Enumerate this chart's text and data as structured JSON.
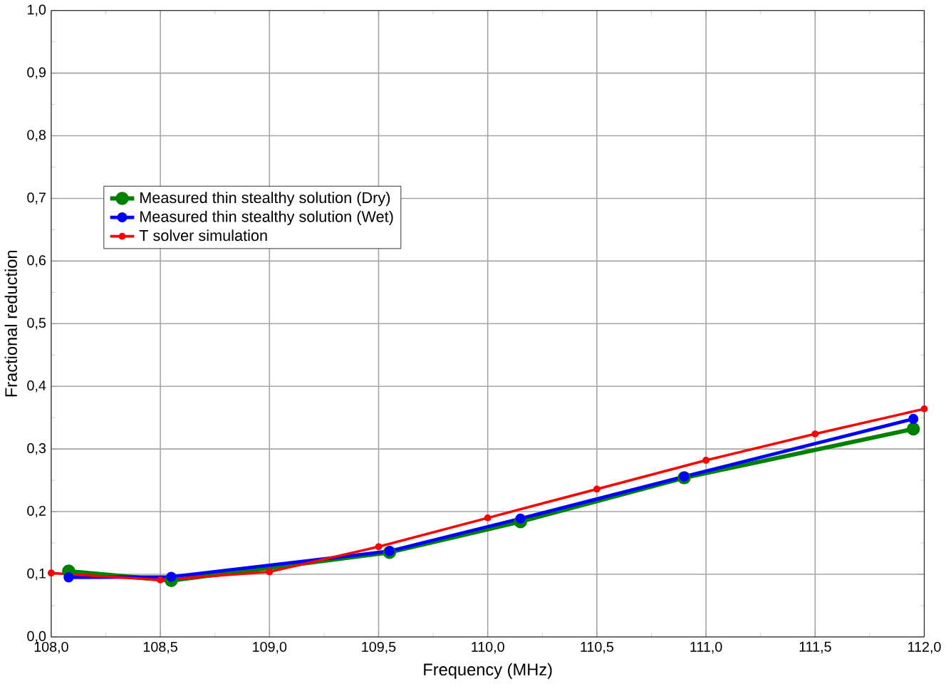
{
  "chart_data": {
    "type": "line",
    "xlabel": "Frequency (MHz)",
    "ylabel": "Fractional reduction",
    "xlim": [
      108.0,
      112.0
    ],
    "ylim": [
      0.0,
      1.0
    ],
    "xticks": [
      {
        "value": 108.0,
        "label": "108,0"
      },
      {
        "value": 108.5,
        "label": "108,5"
      },
      {
        "value": 109.0,
        "label": "109,0"
      },
      {
        "value": 109.5,
        "label": "109,5"
      },
      {
        "value": 110.0,
        "label": "110,0"
      },
      {
        "value": 110.5,
        "label": "110,5"
      },
      {
        "value": 111.0,
        "label": "111,0"
      },
      {
        "value": 111.5,
        "label": "111,5"
      },
      {
        "value": 112.0,
        "label": "112,0"
      }
    ],
    "yticks": [
      {
        "value": 0.0,
        "label": "0,0"
      },
      {
        "value": 0.1,
        "label": "0,1"
      },
      {
        "value": 0.2,
        "label": "0,2"
      },
      {
        "value": 0.3,
        "label": "0,3"
      },
      {
        "value": 0.4,
        "label": "0,4"
      },
      {
        "value": 0.5,
        "label": "0,5"
      },
      {
        "value": 0.6,
        "label": "0,6"
      },
      {
        "value": 0.7,
        "label": "0,7"
      },
      {
        "value": 0.8,
        "label": "0,8"
      },
      {
        "value": 0.9,
        "label": "0,9"
      },
      {
        "value": 1.0,
        "label": "1,0"
      }
    ],
    "grid": true,
    "legend": "center left",
    "marker": "circle",
    "line_style": "solid",
    "series": [
      {
        "name": "Measured thin stealthy solution (Dry)",
        "color": "#008000",
        "x": [
          108.08,
          108.55,
          109.55,
          110.15,
          110.9,
          111.95
        ],
        "values": [
          0.105,
          0.09,
          0.135,
          0.184,
          0.254,
          0.332
        ]
      },
      {
        "name": "Measured thin stealthy solution (Wet)",
        "color": "#0000ff",
        "x": [
          108.08,
          108.55,
          109.55,
          110.15,
          110.9,
          111.95
        ],
        "values": [
          0.095,
          0.096,
          0.137,
          0.189,
          0.256,
          0.348
        ]
      },
      {
        "name": "T solver simulation",
        "color": "#ff0000",
        "x": [
          108.0,
          108.5,
          109.0,
          109.5,
          110.0,
          110.5,
          111.0,
          111.5,
          112.0
        ],
        "values": [
          0.102,
          0.091,
          0.104,
          0.144,
          0.19,
          0.236,
          0.282,
          0.324,
          0.364
        ]
      }
    ]
  }
}
